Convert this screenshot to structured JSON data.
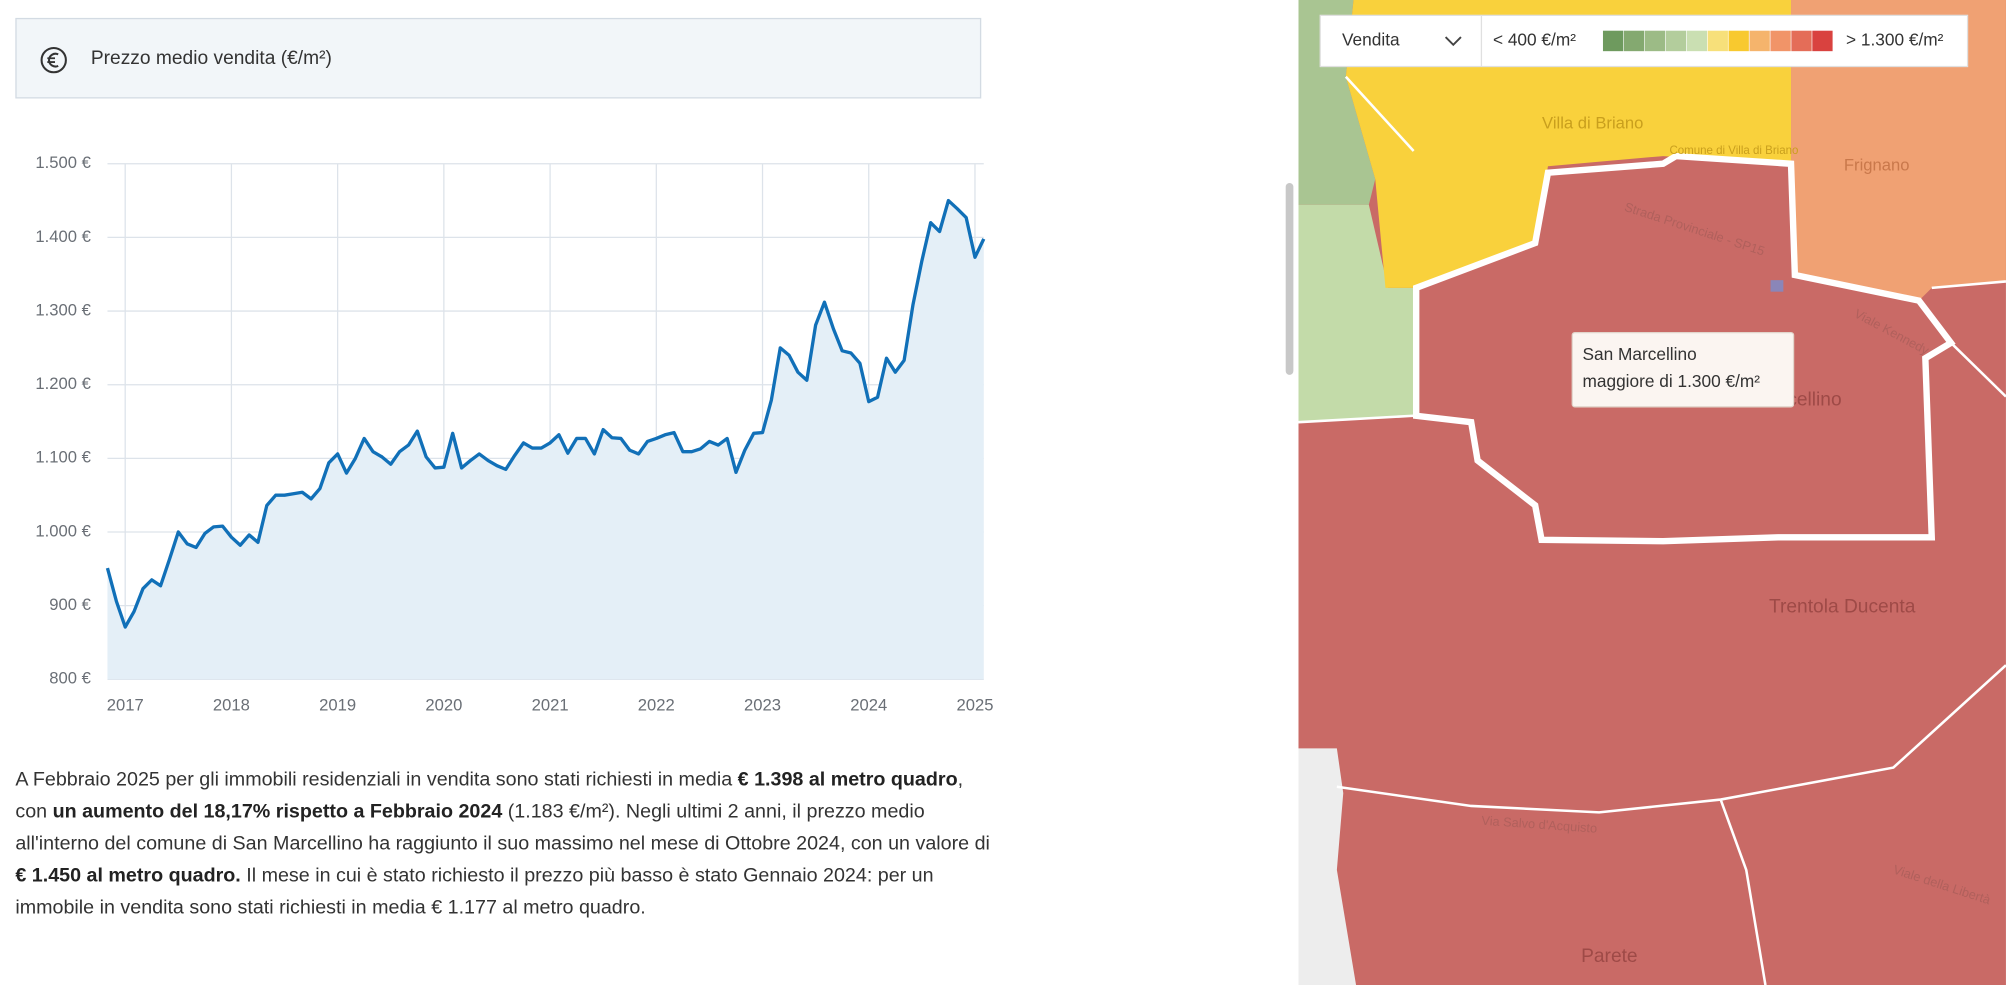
{
  "header": {
    "title": "Prezzo medio vendita (€/m²)"
  },
  "chart_data": {
    "type": "line",
    "color": "#1170b8",
    "area_color": "#e4eff7",
    "grid": true,
    "x": [
      2016.833,
      2016.917,
      2017,
      2017.083,
      2017.167,
      2017.25,
      2017.333,
      2017.417,
      2017.5,
      2017.583,
      2017.667,
      2017.75,
      2017.833,
      2017.917,
      2018,
      2018.083,
      2018.167,
      2018.25,
      2018.333,
      2018.417,
      2018.5,
      2018.583,
      2018.667,
      2018.75,
      2018.833,
      2018.917,
      2019,
      2019.083,
      2019.167,
      2019.25,
      2019.333,
      2019.417,
      2019.5,
      2019.583,
      2019.667,
      2019.75,
      2019.833,
      2019.917,
      2020,
      2020.083,
      2020.167,
      2020.25,
      2020.333,
      2020.417,
      2020.5,
      2020.583,
      2020.667,
      2020.75,
      2020.833,
      2020.917,
      2021,
      2021.083,
      2021.167,
      2021.25,
      2021.333,
      2021.417,
      2021.5,
      2021.583,
      2021.667,
      2021.75,
      2021.833,
      2021.917,
      2022,
      2022.083,
      2022.167,
      2022.25,
      2022.333,
      2022.417,
      2022.5,
      2022.583,
      2022.667,
      2022.75,
      2022.833,
      2022.917,
      2023,
      2023.083,
      2023.167,
      2023.25,
      2023.333,
      2023.417,
      2023.5,
      2023.583,
      2023.667,
      2023.75,
      2023.833,
      2023.917,
      2024,
      2024.083,
      2024.167,
      2024.25,
      2024.333,
      2024.417,
      2024.5,
      2024.583,
      2024.667,
      2024.75,
      2024.833,
      2024.917,
      2025,
      2025.083
    ],
    "values": [
      951,
      906,
      871,
      892,
      923,
      935,
      927,
      963,
      1000,
      984,
      979,
      998,
      1007,
      1008,
      993,
      982,
      996,
      986,
      1036,
      1050,
      1050,
      1052,
      1054,
      1045,
      1059,
      1094,
      1106,
      1080,
      1100,
      1127,
      1109,
      1102,
      1092,
      1109,
      1118,
      1137,
      1102,
      1087,
      1088,
      1134,
      1087,
      1097,
      1106,
      1097,
      1090,
      1085,
      1104,
      1121,
      1114,
      1114,
      1121,
      1132,
      1107,
      1127,
      1127,
      1106,
      1139,
      1128,
      1127,
      1111,
      1106,
      1123,
      1127,
      1132,
      1135,
      1109,
      1109,
      1113,
      1123,
      1118,
      1127,
      1081,
      1111,
      1134,
      1135,
      1179,
      1250,
      1240,
      1217,
      1206,
      1281,
      1312,
      1276,
      1246,
      1243,
      1229,
      1177,
      1183,
      1236,
      1217,
      1233,
      1309,
      1368,
      1420,
      1408,
      1450,
      1439,
      1427,
      1373,
      1398
    ],
    "xlim": [
      2016.833,
      2025.083
    ],
    "xticks": [
      2017,
      2018,
      2019,
      2020,
      2021,
      2022,
      2023,
      2024,
      2025
    ],
    "ylim": [
      800,
      1500
    ],
    "yticks": [
      {
        "value": 800,
        "label": "800 €"
      },
      {
        "value": 900,
        "label": "900 €"
      },
      {
        "value": 1000,
        "label": "1.000 €"
      },
      {
        "value": 1100,
        "label": "1.100 €"
      },
      {
        "value": 1200,
        "label": "1.200 €"
      },
      {
        "value": 1300,
        "label": "1.300 €"
      },
      {
        "value": 1400,
        "label": "1.400 €"
      },
      {
        "value": 1500,
        "label": "1.500 €"
      }
    ]
  },
  "paragraph": [
    {
      "text": "A Febbraio 2025 per gli immobili residenziali in vendita sono stati richiesti in media ",
      "bold": false
    },
    {
      "text": "€ 1.398 al metro quadro",
      "bold": true
    },
    {
      "text": ", con ",
      "bold": false
    },
    {
      "text": "un aumento del 18,17% rispetto a Febbraio 2024",
      "bold": true
    },
    {
      "text": " (1.183 €/m²). Negli ultimi 2 anni, il prezzo medio all'interno del comune di San Marcellino ha raggiunto il suo massimo nel mese di Ottobre 2024, con un valore di ",
      "bold": false
    },
    {
      "text": "€ 1.450 al metro quadro.",
      "bold": true
    },
    {
      "text": " Il mese in cui è stato richiesto il prezzo più basso è stato Gennaio 2024: per un immobile in vendita sono stati richiesti in media € 1.177 al metro quadro.",
      "bold": false
    }
  ],
  "map": {
    "legend": {
      "dropdown": "Vendita",
      "min_label": "< 400 €/m²",
      "max_label": "> 1.300 €/m²",
      "colors": [
        "#6e9a5e",
        "#84a970",
        "#9cbb86",
        "#b3cd9c",
        "#cadfb2",
        "#f7e07a",
        "#f8c92f",
        "#f5b46c",
        "#f19468",
        "#e46d58",
        "#d9423f"
      ]
    },
    "tooltip": {
      "title": "San Marcellino",
      "text": "maggiore di 1.300 €/m²"
    },
    "places": [
      "Villa di Briano",
      "Frignano",
      "San Marcellino",
      "Trentola Ducenta",
      "Parete",
      "Strada Provinciale - SP15",
      "Viale Kennedy",
      "Via Salvo d'Acquisto",
      "Viale della Libertà",
      "Comune di Villa di Briano"
    ]
  }
}
